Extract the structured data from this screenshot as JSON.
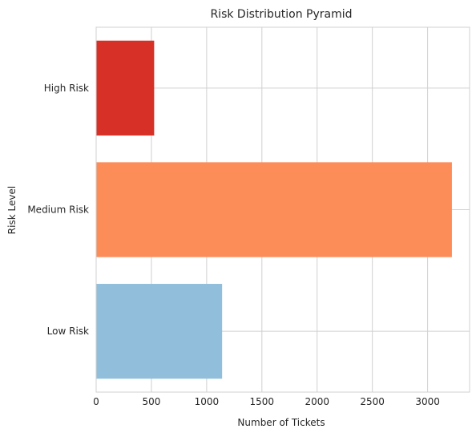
{
  "chart_data": {
    "type": "bar",
    "orientation": "horizontal",
    "title": "Risk Distribution Pyramid",
    "xlabel": "Number of Tickets",
    "ylabel": "Risk Level",
    "categories": [
      "Low Risk",
      "Medium Risk",
      "High Risk"
    ],
    "values": [
      1140,
      3220,
      525
    ],
    "colors": [
      "#91bfdb",
      "#fc8d59",
      "#d73027"
    ],
    "xlim": [
      0,
      3380
    ],
    "xticks": [
      0,
      500,
      1000,
      1500,
      2000,
      2500,
      3000
    ],
    "grid": true
  }
}
